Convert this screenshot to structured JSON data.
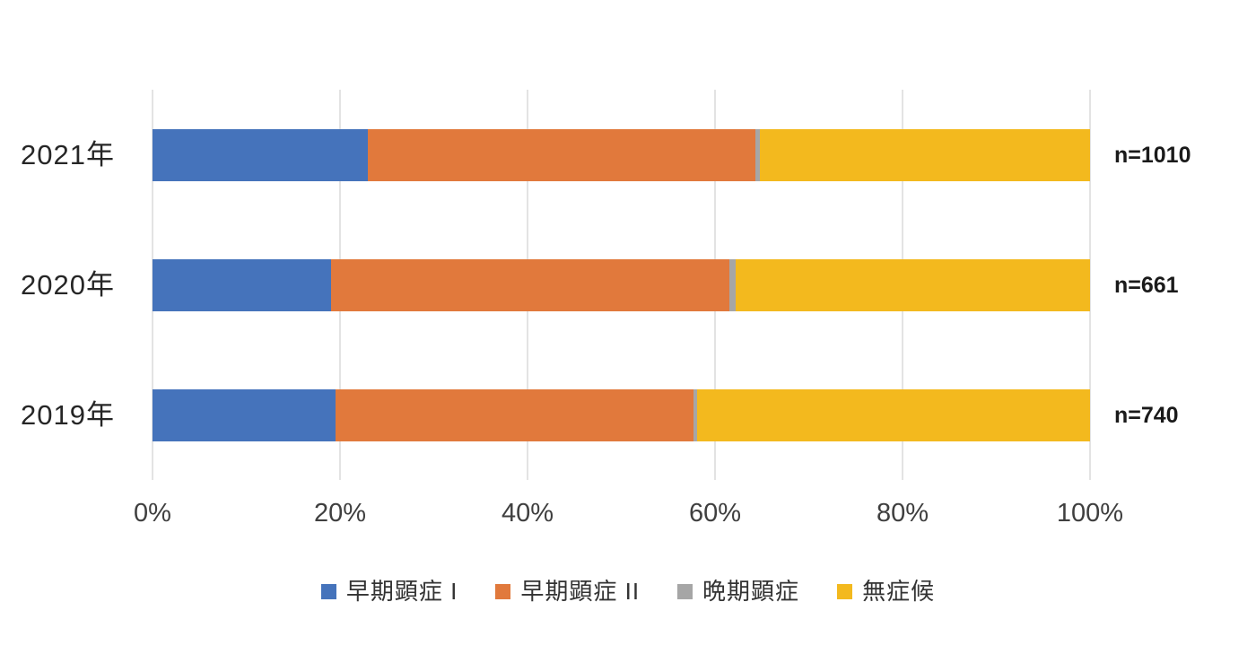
{
  "colors": {
    "blue": "#4573BB",
    "orange": "#E1793C",
    "gray": "#A6A6A6",
    "yellow": "#F3B91E",
    "gridline": "#E3E3E3",
    "axis_text": "#3F3F3F",
    "category_text": "#262626",
    "legend_text": "#333333",
    "n_text": "#1A1A1A"
  },
  "chart_data": {
    "type": "bar",
    "orientation": "horizontal",
    "stacked": true,
    "title": "",
    "xlabel": "",
    "ylabel": "",
    "xlim": [
      0,
      100
    ],
    "grid": true,
    "legend_position": "bottom",
    "categories": [
      "2021年",
      "2020年",
      "2019年"
    ],
    "n_labels": [
      "n=1010",
      "n=661",
      "n=740"
    ],
    "x_ticks": [
      "0%",
      "20%",
      "40%",
      "60%",
      "80%",
      "100%"
    ],
    "series": [
      {
        "name": "早期顕症 I",
        "color_key": "blue",
        "values": [
          23.0,
          19.0,
          19.5
        ]
      },
      {
        "name": "早期顕症 II",
        "color_key": "orange",
        "values": [
          41.3,
          42.5,
          38.2
        ]
      },
      {
        "name": "晩期顕症",
        "color_key": "gray",
        "values": [
          0.5,
          0.7,
          0.4
        ]
      },
      {
        "name": "無症候",
        "color_key": "yellow",
        "values": [
          35.2,
          37.8,
          41.9
        ]
      }
    ]
  }
}
